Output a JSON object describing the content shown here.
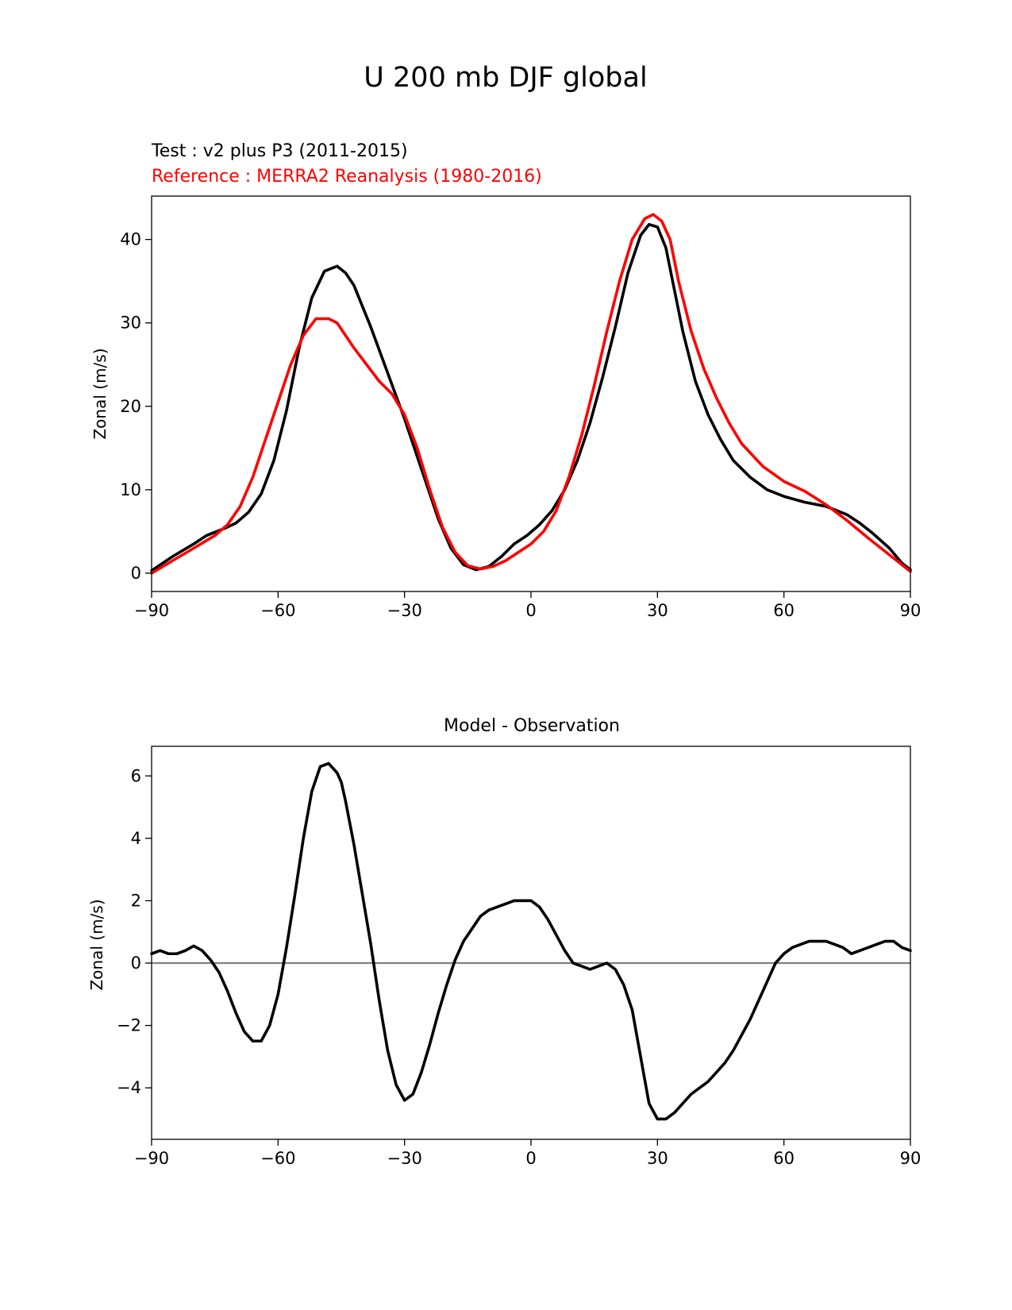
{
  "figure_title": "U 200 mb DJF global",
  "colors": {
    "test": "#000000",
    "reference": "#ff0000",
    "zero_line": "#808080",
    "axis": "#000000"
  },
  "chart_data": [
    {
      "type": "line",
      "test_label": "Test : v2 plus P3 (2011-2015)",
      "reference_label": "Reference : MERRA2 Reanalysis (1980-2016)",
      "xlabel": "",
      "ylabel": "Zonal (m/s)",
      "xlim": [
        -90,
        90
      ],
      "ylim": [
        -2.2,
        45.2
      ],
      "xticks": [
        -90,
        -60,
        -30,
        0,
        30,
        60,
        90
      ],
      "xtick_labels": [
        "−90",
        "−60",
        "−30",
        "0",
        "30",
        "60",
        "90"
      ],
      "yticks": [
        0,
        10,
        20,
        30,
        40
      ],
      "ytick_labels": [
        "0",
        "10",
        "20",
        "30",
        "40"
      ],
      "series": [
        {
          "name": "Test",
          "color": "#000000",
          "x": [
            -90,
            -85,
            -80,
            -77,
            -73,
            -70,
            -67,
            -64,
            -61,
            -58,
            -55,
            -52,
            -49,
            -46,
            -44,
            -42,
            -38,
            -34,
            -30,
            -26,
            -22,
            -19,
            -16,
            -13,
            -10,
            -7,
            -4,
            -1,
            2,
            5,
            8,
            11,
            14,
            17,
            20,
            23,
            26,
            28,
            30,
            32,
            34,
            36,
            39,
            42,
            45,
            48,
            52,
            56,
            60,
            65,
            70,
            75,
            78,
            81,
            85,
            88,
            90
          ],
          "y": [
            0.3,
            2.0,
            3.5,
            4.5,
            5.3,
            6.0,
            7.3,
            9.5,
            13.5,
            19.5,
            27.0,
            33.0,
            36.2,
            36.8,
            36.0,
            34.5,
            29.5,
            24.0,
            18.5,
            12.5,
            6.5,
            3.0,
            1.0,
            0.4,
            0.8,
            2.0,
            3.5,
            4.5,
            5.8,
            7.5,
            10.0,
            13.5,
            18.0,
            23.5,
            29.5,
            36.0,
            40.5,
            41.8,
            41.5,
            39.0,
            34.0,
            29.0,
            23.0,
            19.0,
            16.0,
            13.5,
            11.5,
            10.0,
            9.2,
            8.5,
            8.0,
            7.0,
            6.0,
            4.8,
            3.0,
            1.2,
            0.4
          ]
        },
        {
          "name": "Reference",
          "color": "#ff0000",
          "x": [
            -90,
            -85,
            -80,
            -75,
            -72,
            -69,
            -66,
            -63,
            -60,
            -57,
            -54,
            -51,
            -48,
            -46,
            -44,
            -42,
            -39,
            -36,
            -33,
            -30,
            -27,
            -24,
            -21,
            -18,
            -15,
            -12,
            -9,
            -6,
            -3,
            0,
            3,
            6,
            9,
            12,
            15,
            18,
            21,
            24,
            27,
            29,
            31,
            33,
            35,
            38,
            41,
            44,
            47,
            50,
            55,
            60,
            65,
            70,
            75,
            80,
            85,
            90
          ],
          "y": [
            0.0,
            1.5,
            3.0,
            4.5,
            5.8,
            8.0,
            11.5,
            16.0,
            20.5,
            25.0,
            28.5,
            30.5,
            30.5,
            30.0,
            28.5,
            27.0,
            25.0,
            23.0,
            21.5,
            19.0,
            15.0,
            10.0,
            5.5,
            2.5,
            0.9,
            0.5,
            0.8,
            1.5,
            2.5,
            3.5,
            5.0,
            7.5,
            11.5,
            16.5,
            22.5,
            29.0,
            35.0,
            40.0,
            42.5,
            43.0,
            42.2,
            40.0,
            35.0,
            29.0,
            24.5,
            21.0,
            18.0,
            15.5,
            12.8,
            11.0,
            9.8,
            8.2,
            6.3,
            4.2,
            2.2,
            0.2
          ]
        }
      ]
    },
    {
      "type": "line",
      "title": "Model - Observation",
      "xlabel": "",
      "ylabel": "Zonal (m/s)",
      "xlim": [
        -90,
        90
      ],
      "ylim": [
        -5.65,
        6.95
      ],
      "xticks": [
        -90,
        -60,
        -30,
        0,
        30,
        60,
        90
      ],
      "xtick_labels": [
        "−90",
        "−60",
        "−30",
        "0",
        "30",
        "60",
        "90"
      ],
      "yticks": [
        -4,
        -2,
        0,
        2,
        4,
        6
      ],
      "ytick_labels": [
        "−4",
        "−2",
        "0",
        "2",
        "4",
        "6"
      ],
      "zero_line": 0,
      "series": [
        {
          "name": "Model - Observation",
          "color": "#000000",
          "x": [
            -90,
            -88,
            -86,
            -84,
            -82,
            -80,
            -78,
            -76,
            -74,
            -72,
            -70,
            -68,
            -66,
            -64,
            -62,
            -60,
            -58,
            -56,
            -54,
            -52,
            -50,
            -48,
            -46,
            -45,
            -44,
            -42,
            -40,
            -38,
            -36,
            -34,
            -32,
            -30,
            -28,
            -26,
            -24,
            -22,
            -20,
            -18,
            -16,
            -14,
            -12,
            -10,
            -8,
            -6,
            -4,
            -2,
            0,
            2,
            4,
            6,
            8,
            10,
            12,
            14,
            16,
            18,
            20,
            22,
            24,
            26,
            28,
            30,
            32,
            34,
            36,
            38,
            40,
            42,
            44,
            46,
            48,
            50,
            52,
            54,
            56,
            58,
            60,
            62,
            64,
            66,
            68,
            70,
            72,
            74,
            76,
            78,
            80,
            82,
            84,
            86,
            88,
            90
          ],
          "y": [
            0.3,
            0.4,
            0.3,
            0.3,
            0.4,
            0.55,
            0.4,
            0.1,
            -0.3,
            -0.9,
            -1.6,
            -2.2,
            -2.5,
            -2.5,
            -2.0,
            -1.0,
            0.5,
            2.2,
            4.0,
            5.5,
            6.3,
            6.4,
            6.1,
            5.8,
            5.2,
            3.8,
            2.2,
            0.6,
            -1.2,
            -2.8,
            -3.9,
            -4.4,
            -4.2,
            -3.5,
            -2.6,
            -1.6,
            -0.7,
            0.1,
            0.7,
            1.1,
            1.5,
            1.7,
            1.8,
            1.9,
            2.0,
            2.0,
            2.0,
            1.8,
            1.4,
            0.9,
            0.4,
            0.0,
            -0.1,
            -0.2,
            -0.1,
            0.0,
            -0.2,
            -0.7,
            -1.5,
            -3.0,
            -4.5,
            -5.0,
            -5.0,
            -4.8,
            -4.5,
            -4.2,
            -4.0,
            -3.8,
            -3.5,
            -3.2,
            -2.8,
            -2.3,
            -1.8,
            -1.2,
            -0.6,
            0.0,
            0.3,
            0.5,
            0.6,
            0.7,
            0.7,
            0.7,
            0.6,
            0.5,
            0.3,
            0.4,
            0.5,
            0.6,
            0.7,
            0.7,
            0.5,
            0.4
          ]
        }
      ]
    }
  ]
}
